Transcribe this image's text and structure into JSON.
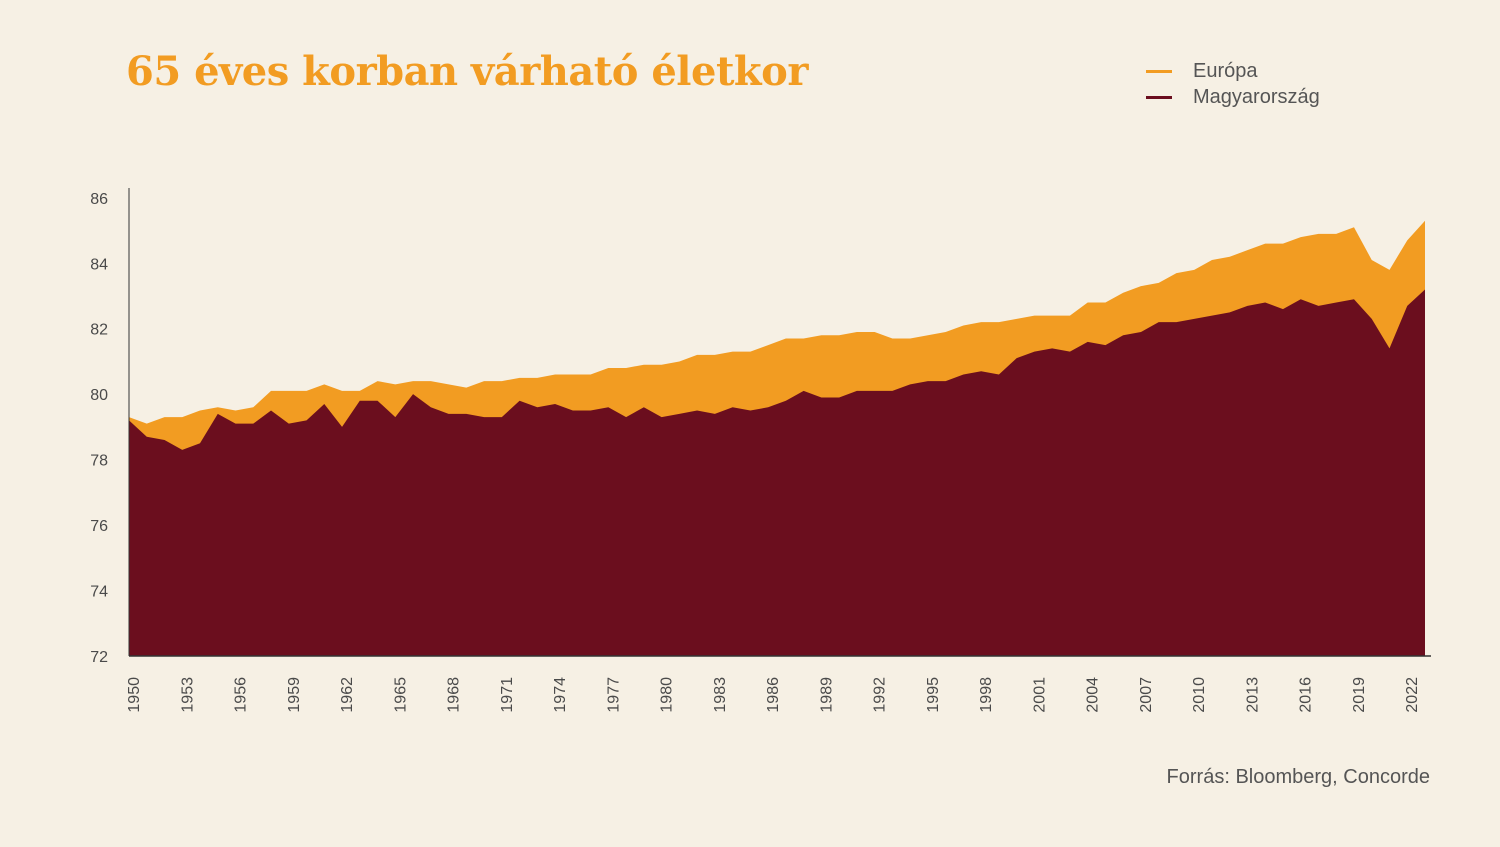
{
  "colors": {
    "background": "#f6f0e4",
    "europe": "#f29c22",
    "hungary": "#6b0e1e",
    "axis": "#333333"
  },
  "chart_data": {
    "type": "area",
    "title": "65 éves korban várható életkor",
    "source": "Forrás: Bloomberg, Concorde",
    "legend_position": "top-right",
    "grid": false,
    "x": [
      1950,
      1951,
      1952,
      1953,
      1954,
      1955,
      1956,
      1957,
      1958,
      1959,
      1960,
      1961,
      1962,
      1963,
      1964,
      1965,
      1966,
      1967,
      1968,
      1969,
      1970,
      1971,
      1972,
      1973,
      1974,
      1975,
      1976,
      1977,
      1978,
      1979,
      1980,
      1981,
      1982,
      1983,
      1984,
      1985,
      1986,
      1987,
      1988,
      1989,
      1990,
      1991,
      1992,
      1993,
      1994,
      1995,
      1996,
      1997,
      1998,
      1999,
      2000,
      2001,
      2002,
      2003,
      2004,
      2005,
      2006,
      2007,
      2008,
      2009,
      2010,
      2011,
      2012,
      2013,
      2014,
      2015,
      2016,
      2017,
      2018,
      2019,
      2020,
      2021,
      2022,
      2023
    ],
    "x_tick_labels": [
      "1950",
      "1953",
      "1956",
      "1959",
      "1962",
      "1965",
      "1968",
      "1971",
      "1974",
      "1977",
      "1980",
      "1983",
      "1986",
      "1989",
      "1992",
      "1995",
      "1998",
      "2001",
      "2004",
      "2007",
      "2010",
      "2013",
      "2016",
      "2019",
      "2022"
    ],
    "y_ticks": [
      72,
      74,
      76,
      78,
      80,
      82,
      84,
      86
    ],
    "ylim": [
      72,
      86.3
    ],
    "series": [
      {
        "name": "Európa",
        "values": [
          79.3,
          79.1,
          79.3,
          79.3,
          79.5,
          79.6,
          79.5,
          79.6,
          80.1,
          80.1,
          80.1,
          80.3,
          80.1,
          80.1,
          80.4,
          80.3,
          80.4,
          80.4,
          80.3,
          80.2,
          80.4,
          80.4,
          80.5,
          80.5,
          80.6,
          80.6,
          80.6,
          80.8,
          80.8,
          80.9,
          80.9,
          81.0,
          81.2,
          81.2,
          81.3,
          81.3,
          81.5,
          81.7,
          81.7,
          81.8,
          81.8,
          81.9,
          81.9,
          81.7,
          81.7,
          81.8,
          81.9,
          82.1,
          82.2,
          82.2,
          82.3,
          82.4,
          82.4,
          82.4,
          82.8,
          82.8,
          83.1,
          83.3,
          83.4,
          83.7,
          83.8,
          84.1,
          84.2,
          84.4,
          84.6,
          84.6,
          84.8,
          84.9,
          84.9,
          85.1,
          84.1,
          83.8,
          84.7,
          85.3
        ]
      },
      {
        "name": "Magyarország",
        "values": [
          79.2,
          78.7,
          78.6,
          78.3,
          78.5,
          79.4,
          79.1,
          79.1,
          79.5,
          79.1,
          79.2,
          79.7,
          79.0,
          79.8,
          79.8,
          79.3,
          80.0,
          79.6,
          79.4,
          79.4,
          79.3,
          79.3,
          79.8,
          79.6,
          79.7,
          79.5,
          79.5,
          79.6,
          79.3,
          79.6,
          79.3,
          79.4,
          79.5,
          79.4,
          79.6,
          79.5,
          79.6,
          79.8,
          80.1,
          79.9,
          79.9,
          80.1,
          80.1,
          80.1,
          80.3,
          80.4,
          80.4,
          80.6,
          80.7,
          80.6,
          81.1,
          81.3,
          81.4,
          81.3,
          81.6,
          81.5,
          81.8,
          81.9,
          82.2,
          82.2,
          82.3,
          82.4,
          82.5,
          82.7,
          82.8,
          82.6,
          82.9,
          82.7,
          82.8,
          82.9,
          82.3,
          81.4,
          82.7,
          83.2
        ]
      }
    ]
  }
}
